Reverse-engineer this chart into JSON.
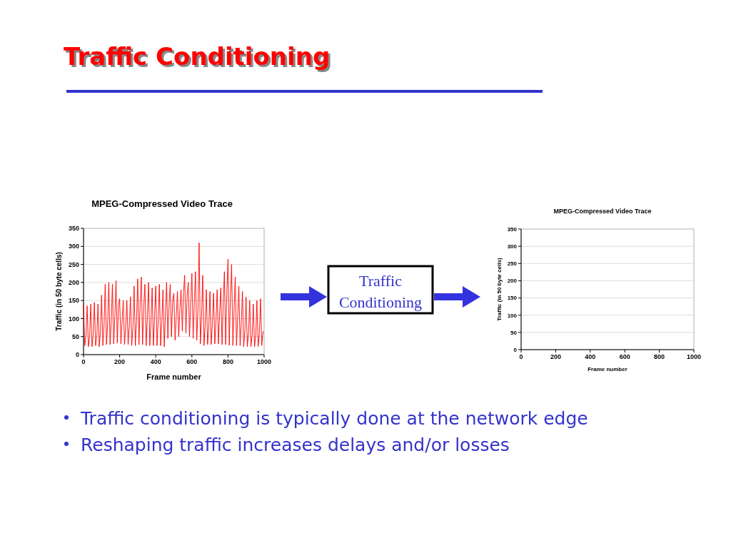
{
  "chart_data": [
    {
      "type": "other",
      "title": "Traffic Conditioning",
      "annotations": [
        "Traffic Conditioning",
        "Traffic conditioning is typically done at the network edge",
        "Reshaping traffic increases delays and/or losses"
      ]
    },
    {
      "type": "line",
      "title": "MPEG-Compressed Video Trace",
      "xlabel": "Frame number",
      "ylabel": "Traffic (in 50 byte cells)",
      "xlim": [
        0,
        1000
      ],
      "xticks": [
        0,
        200,
        400,
        600,
        800,
        1000
      ],
      "ylim": [
        0,
        350
      ],
      "yticks": [
        0,
        50,
        100,
        150,
        200,
        250,
        300,
        350
      ],
      "grid": "y",
      "x": [
        0,
        7,
        14,
        20,
        27,
        34,
        40,
        47,
        54,
        60,
        67,
        74,
        80,
        87,
        94,
        100,
        107,
        114,
        120,
        127,
        134,
        140,
        147,
        154,
        160,
        167,
        174,
        180,
        187,
        194,
        200,
        207,
        214,
        220,
        227,
        234,
        240,
        247,
        254,
        260,
        267,
        274,
        280,
        287,
        294,
        300,
        307,
        314,
        320,
        327,
        334,
        340,
        347,
        354,
        360,
        367,
        374,
        380,
        387,
        394,
        400,
        407,
        414,
        420,
        427,
        434,
        440,
        447,
        454,
        460,
        467,
        474,
        480,
        487,
        494,
        500,
        507,
        514,
        520,
        527,
        534,
        540,
        547,
        554,
        560,
        567,
        574,
        580,
        587,
        594,
        600,
        607,
        614,
        620,
        627,
        634,
        640,
        647,
        654,
        660,
        667,
        674,
        680,
        687,
        694,
        700,
        707,
        714,
        720,
        727,
        734,
        740,
        747,
        754,
        760,
        767,
        774,
        780,
        787,
        794,
        800,
        807,
        814,
        820,
        827,
        834,
        840,
        847,
        854,
        860,
        867,
        874,
        880,
        887,
        894,
        900,
        907,
        914,
        920,
        927,
        934,
        940,
        947,
        954,
        960,
        967,
        974,
        980,
        987,
        994
      ],
      "series": [
        {
          "color": "#ff0000",
          "values": [
            140,
            25,
            55,
            135,
            22,
            50,
            140,
            22,
            60,
            145,
            25,
            55,
            140,
            22,
            65,
            165,
            25,
            85,
            195,
            28,
            90,
            200,
            28,
            95,
            195,
            30,
            110,
            205,
            32,
            140,
            155,
            30,
            95,
            150,
            28,
            80,
            150,
            28,
            85,
            160,
            25,
            80,
            190,
            25,
            100,
            210,
            28,
            150,
            215,
            28,
            140,
            195,
            25,
            110,
            200,
            25,
            95,
            185,
            25,
            110,
            190,
            25,
            100,
            195,
            25,
            95,
            180,
            22,
            120,
            200,
            45,
            140,
            195,
            50,
            150,
            170,
            40,
            110,
            175,
            50,
            130,
            180,
            65,
            175,
            220,
            60,
            165,
            200,
            50,
            150,
            225,
            45,
            150,
            230,
            40,
            130,
            310,
            30,
            110,
            220,
            25,
            85,
            180,
            28,
            80,
            175,
            28,
            90,
            170,
            30,
            100,
            180,
            30,
            120,
            185,
            28,
            150,
            230,
            28,
            180,
            265,
            26,
            165,
            250,
            25,
            130,
            215,
            25,
            110,
            190,
            25,
            90,
            175,
            22,
            70,
            160,
            22,
            60,
            150,
            22,
            55,
            140,
            22,
            55,
            150,
            22,
            60,
            155,
            25,
            65
          ]
        }
      ]
    },
    {
      "type": "line",
      "title": "MPEG-Compressed Video Trace",
      "xlabel": "Frame number",
      "ylabel": "Traffic (in 50 byte cells)",
      "xlim": [
        0,
        1000
      ],
      "xticks": [
        0,
        200,
        400,
        600,
        800,
        1000
      ],
      "ylim": [
        0,
        350
      ],
      "yticks": [
        0,
        50,
        100,
        150,
        200,
        250,
        300,
        350
      ],
      "grid": "y"
    }
  ]
}
